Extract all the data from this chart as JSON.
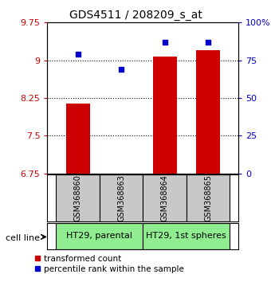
{
  "title": "GDS4511 / 208209_s_at",
  "samples": [
    "GSM368860",
    "GSM368863",
    "GSM368864",
    "GSM368865"
  ],
  "bar_values": [
    8.14,
    6.72,
    9.08,
    9.2
  ],
  "bar_base": 6.75,
  "percentile_data": [
    79,
    69,
    87,
    87
  ],
  "ylim": [
    6.75,
    9.75
  ],
  "yticks": [
    6.75,
    7.5,
    8.25,
    9.0,
    9.75
  ],
  "ytick_labels": [
    "6.75",
    "7.5",
    "8.25",
    "9",
    "9.75"
  ],
  "right_yticks": [
    0,
    25,
    50,
    75,
    100
  ],
  "right_ytick_labels": [
    "0",
    "25",
    "50",
    "75",
    "100%"
  ],
  "bar_color": "#cc0000",
  "dot_color": "#0000cc",
  "sample_bg_color": "#c8c8c8",
  "group_color": "#90ee90",
  "groups": [
    "HT29, parental",
    "HT29, 1st spheres"
  ],
  "cell_line_label": "cell line",
  "legend_bar_label": "transformed count",
  "legend_dot_label": "percentile rank within the sample",
  "bar_width": 0.55,
  "x_positions": [
    0,
    1,
    2,
    3
  ],
  "fig_width": 3.4,
  "fig_height": 3.54,
  "dpi": 100
}
